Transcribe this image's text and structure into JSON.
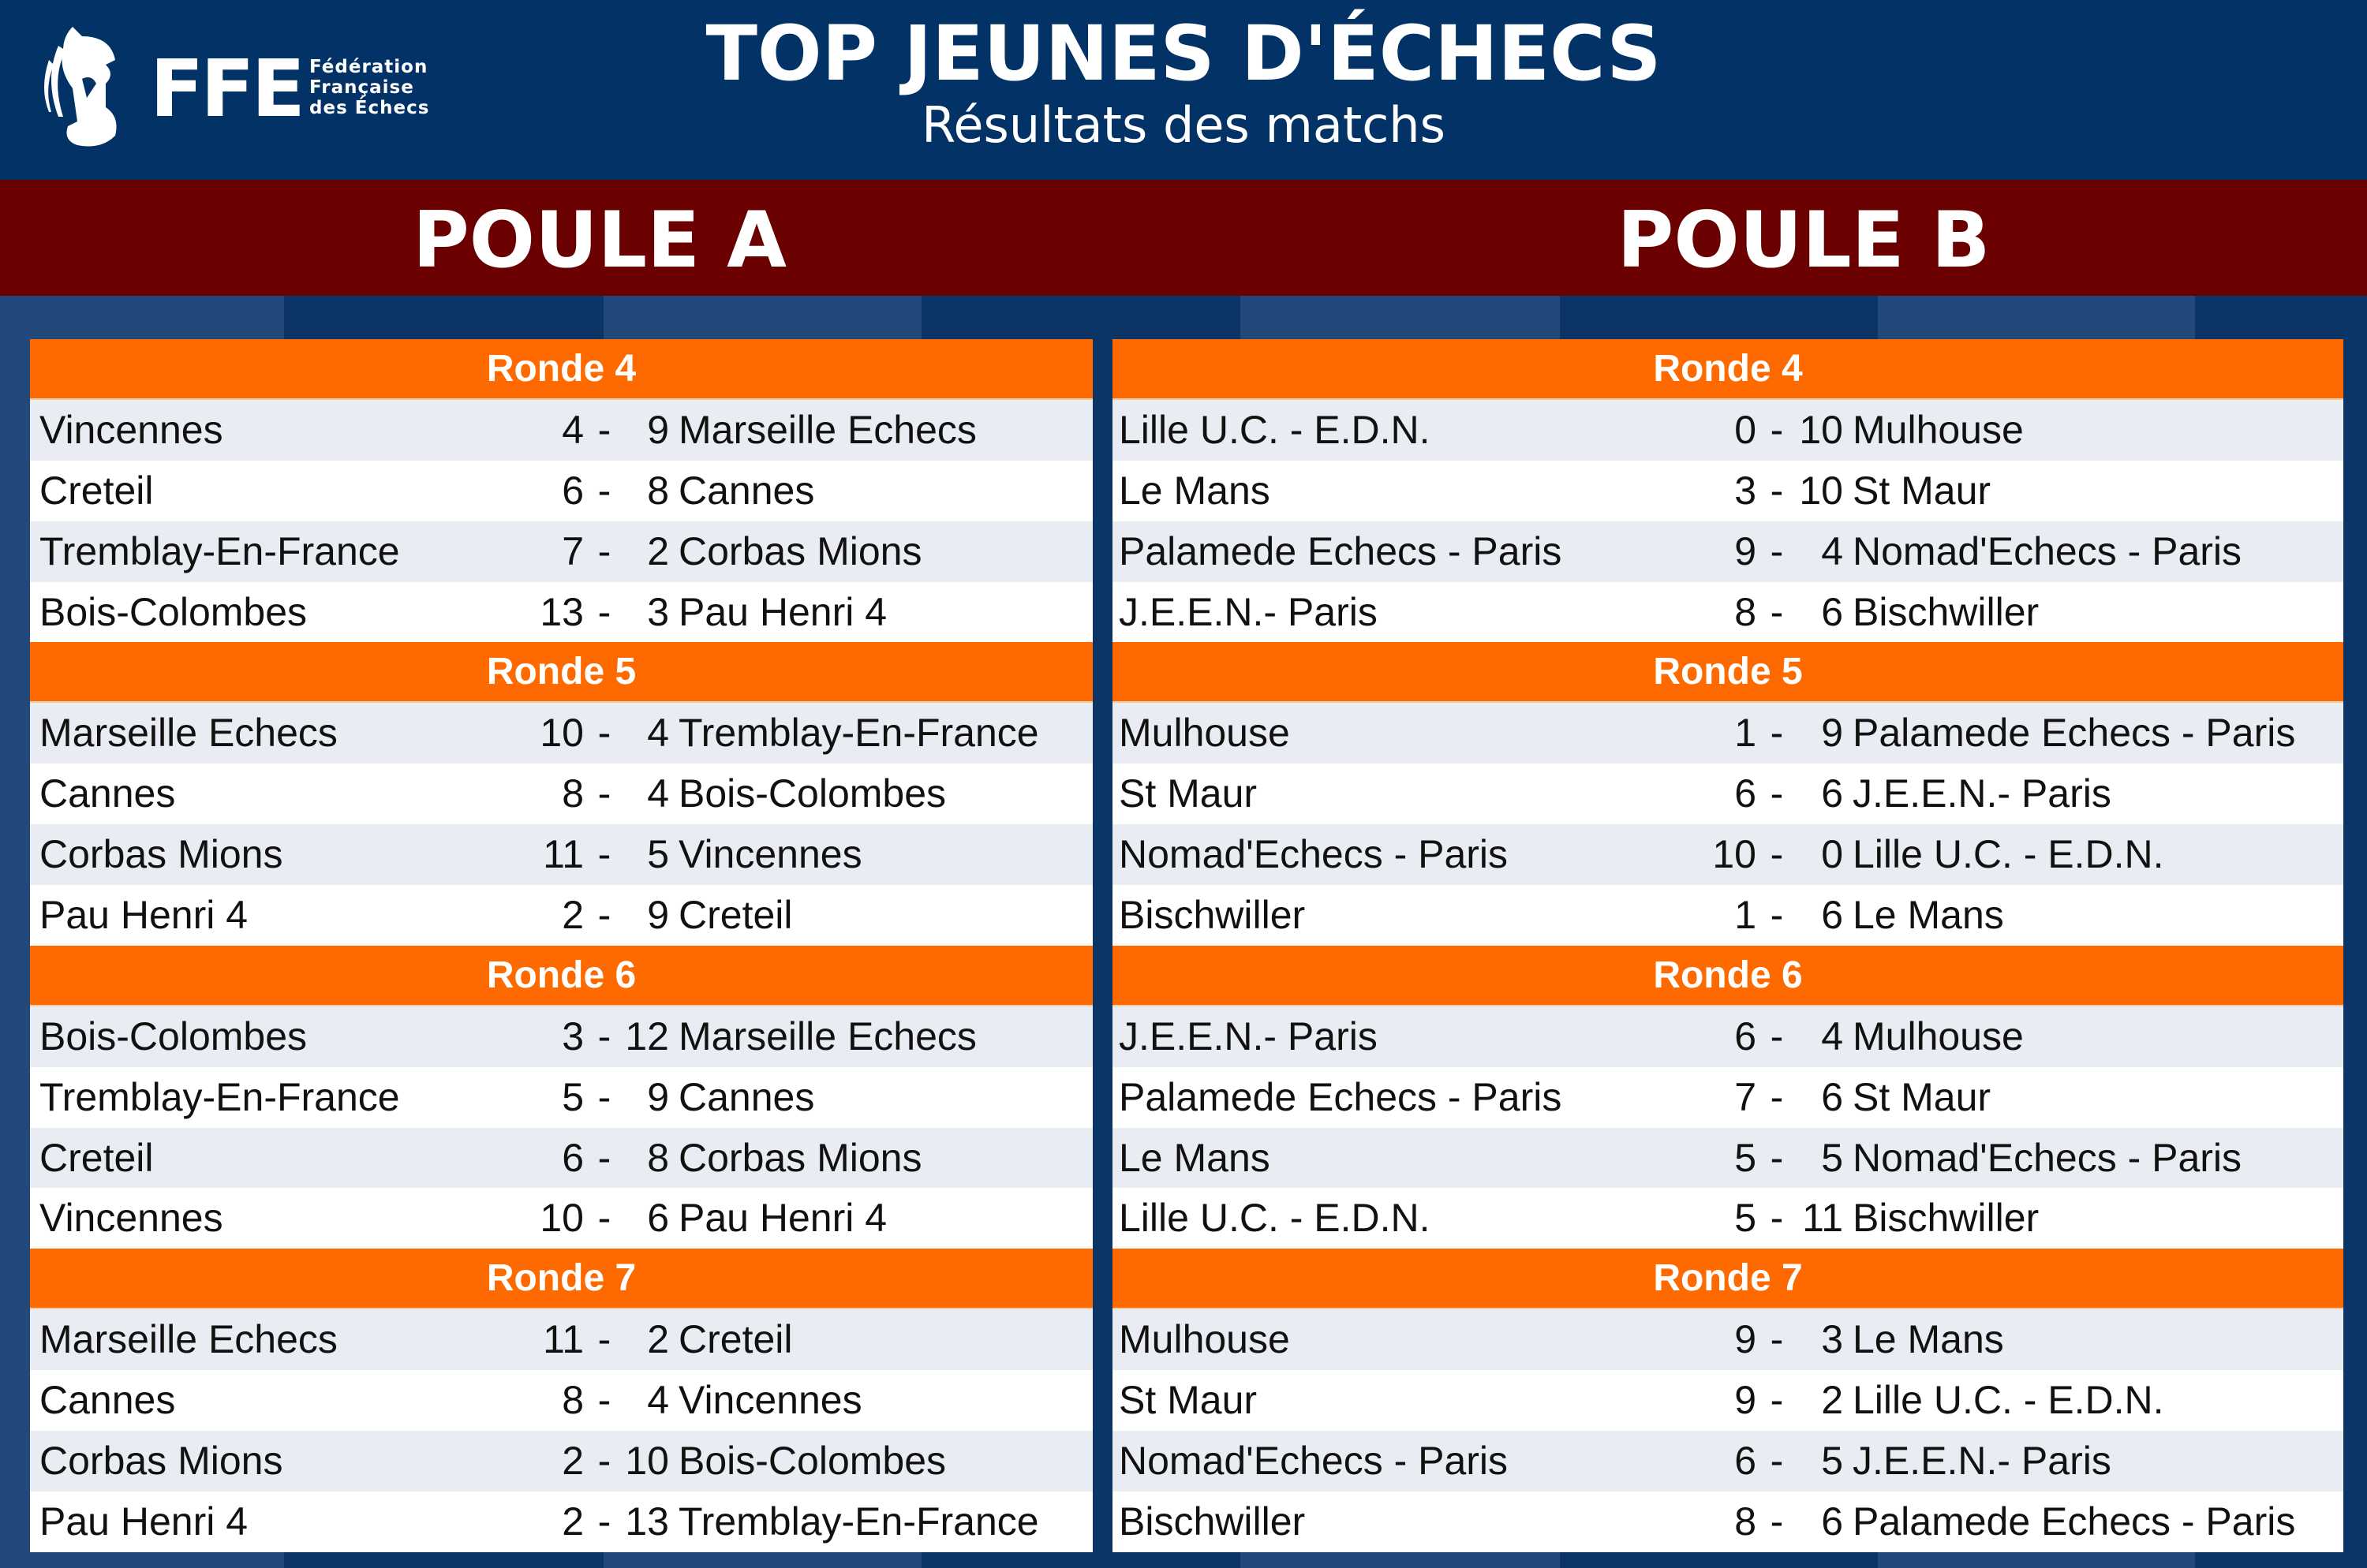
{
  "header": {
    "logo_text": "FFE",
    "logo_sub": [
      "Fédération",
      "Française",
      "des Échecs"
    ],
    "title": "TOP JEUNES D'ÉCHECS",
    "subtitle": "Résultats des matchs"
  },
  "colors": {
    "header_bg": "#033366",
    "band": "#6b0000",
    "round_header": "#ff6a00"
  },
  "pools": [
    {
      "title": "POULE A",
      "rounds": [
        {
          "label": "Ronde 4",
          "matches": [
            [
              "Vincennes",
              "4",
              "9",
              "Marseille Echecs"
            ],
            [
              "Creteil",
              "6",
              "8",
              "Cannes"
            ],
            [
              "Tremblay-En-France",
              "7",
              "2",
              "Corbas Mions"
            ],
            [
              "Bois-Colombes",
              "13",
              "3",
              "Pau Henri 4"
            ]
          ]
        },
        {
          "label": "Ronde 5",
          "matches": [
            [
              "Marseille Echecs",
              "10",
              "4",
              "Tremblay-En-France"
            ],
            [
              "Cannes",
              "8",
              "4",
              "Bois-Colombes"
            ],
            [
              "Corbas Mions",
              "11",
              "5",
              "Vincennes"
            ],
            [
              "Pau Henri 4",
              "2",
              "9",
              "Creteil"
            ]
          ]
        },
        {
          "label": "Ronde 6",
          "matches": [
            [
              "Bois-Colombes",
              "3",
              "12",
              "Marseille Echecs"
            ],
            [
              "Tremblay-En-France",
              "5",
              "9",
              "Cannes"
            ],
            [
              "Creteil",
              "6",
              "8",
              "Corbas Mions"
            ],
            [
              "Vincennes",
              "10",
              "6",
              "Pau Henri 4"
            ]
          ]
        },
        {
          "label": "Ronde 7",
          "matches": [
            [
              "Marseille Echecs",
              "11",
              "2",
              "Creteil"
            ],
            [
              "Cannes",
              "8",
              "4",
              "Vincennes"
            ],
            [
              "Corbas Mions",
              "2",
              "10",
              "Bois-Colombes"
            ],
            [
              "Pau Henri 4",
              "2",
              "13",
              "Tremblay-En-France"
            ]
          ]
        }
      ]
    },
    {
      "title": "POULE B",
      "rounds": [
        {
          "label": "Ronde 4",
          "matches": [
            [
              "Lille U.C. - E.D.N.",
              "0",
              "10",
              "Mulhouse"
            ],
            [
              "Le Mans",
              "3",
              "10",
              "St Maur"
            ],
            [
              "Palamede Echecs - Paris",
              "9",
              "4",
              "Nomad'Echecs - Paris"
            ],
            [
              "J.E.E.N.- Paris",
              "8",
              "6",
              "Bischwiller"
            ]
          ]
        },
        {
          "label": "Ronde 5",
          "matches": [
            [
              "Mulhouse",
              "1",
              "9",
              "Palamede Echecs - Paris"
            ],
            [
              "St Maur",
              "6",
              "6",
              "J.E.E.N.- Paris"
            ],
            [
              "Nomad'Echecs - Paris",
              "10",
              "0",
              "Lille U.C. - E.D.N."
            ],
            [
              "Bischwiller",
              "1",
              "6",
              "Le Mans"
            ]
          ]
        },
        {
          "label": "Ronde 6",
          "matches": [
            [
              "J.E.E.N.- Paris",
              "6",
              "4",
              "Mulhouse"
            ],
            [
              "Palamede Echecs - Paris",
              "7",
              "6",
              "St Maur"
            ],
            [
              "Le Mans",
              "5",
              "5",
              "Nomad'Echecs - Paris"
            ],
            [
              "Lille U.C. - E.D.N.",
              "5",
              "11",
              "Bischwiller"
            ]
          ]
        },
        {
          "label": "Ronde 7",
          "matches": [
            [
              "Mulhouse",
              "9",
              "3",
              "Le Mans"
            ],
            [
              "St Maur",
              "9",
              "2",
              "Lille U.C. - E.D.N."
            ],
            [
              "Nomad'Echecs - Paris",
              "6",
              "5",
              "J.E.E.N.- Paris"
            ],
            [
              "Bischwiller",
              "8",
              "6",
              "Palamede Echecs - Paris"
            ]
          ]
        }
      ]
    }
  ]
}
